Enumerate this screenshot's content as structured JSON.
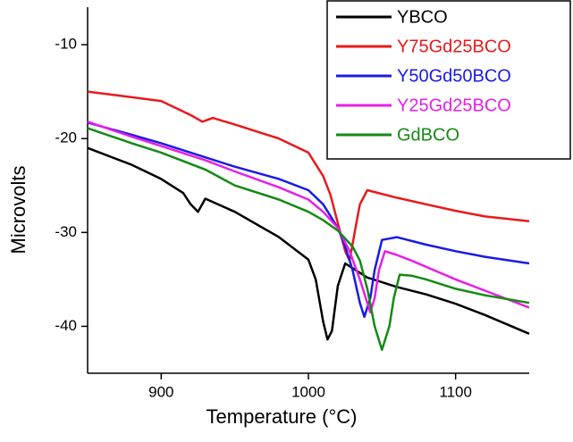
{
  "chart_data": {
    "type": "line",
    "x_label": "Temperature (°C)",
    "y_label": "Microvolts",
    "xlim": [
      850,
      1150
    ],
    "xticks": [
      900,
      1000,
      1100
    ],
    "ylim": [
      -45,
      -6
    ],
    "yticks": [
      -10,
      -20,
      -30,
      -40
    ],
    "legend": "upper right",
    "series": [
      {
        "name": "YBCO",
        "color": "#000000",
        "x": [
          850,
          880,
          900,
          915,
          920,
          925,
          930,
          950,
          980,
          1000,
          1005,
          1010,
          1013,
          1016,
          1020,
          1025,
          1030,
          1040,
          1060,
          1080,
          1100,
          1120,
          1150
        ],
        "values": [
          -21,
          -22.8,
          -24.3,
          -25.8,
          -27,
          -27.8,
          -26.4,
          -27.8,
          -30.5,
          -32.9,
          -35,
          -39.5,
          -41.4,
          -40.5,
          -35.7,
          -33.3,
          -33.8,
          -34.8,
          -35.8,
          -36.6,
          -37.6,
          -38.8,
          -40.8
        ]
      },
      {
        "name": "Y75Gd25BCO",
        "color": "#e8191c",
        "x": [
          850,
          880,
          900,
          920,
          928,
          935,
          950,
          980,
          1000,
          1010,
          1015,
          1020,
          1025,
          1028,
          1032,
          1035,
          1040,
          1060,
          1080,
          1100,
          1120,
          1150
        ],
        "values": [
          -15,
          -15.6,
          -16,
          -17.5,
          -18.2,
          -17.8,
          -18.5,
          -20,
          -21.5,
          -24,
          -26,
          -29,
          -32,
          -33,
          -29.5,
          -27,
          -25.5,
          -26.3,
          -27,
          -27.7,
          -28.3,
          -28.8
        ]
      },
      {
        "name": "Y50Gd50BCO",
        "color": "#1a1ae6",
        "x": [
          850,
          880,
          900,
          930,
          950,
          980,
          1000,
          1010,
          1020,
          1025,
          1030,
          1035,
          1038,
          1042,
          1045,
          1050,
          1060,
          1080,
          1100,
          1120,
          1150
        ],
        "values": [
          -18.3,
          -19.6,
          -20.5,
          -22,
          -23,
          -24.3,
          -25.5,
          -27,
          -29.5,
          -31.5,
          -34,
          -37.5,
          -39,
          -37,
          -34,
          -30.8,
          -30.5,
          -31.3,
          -32,
          -32.6,
          -33.3
        ]
      },
      {
        "name": "Y25Gd25BCO",
        "color": "#e81ee8",
        "x": [
          850,
          880,
          900,
          930,
          950,
          980,
          1000,
          1010,
          1020,
          1028,
          1035,
          1042,
          1045,
          1048,
          1052,
          1060,
          1070,
          1085,
          1100,
          1120,
          1150
        ],
        "values": [
          -18.2,
          -19.8,
          -20.8,
          -22.3,
          -23.5,
          -25.2,
          -26.5,
          -27.8,
          -29.5,
          -32,
          -35,
          -38.5,
          -37,
          -34,
          -32,
          -32.4,
          -33,
          -34,
          -35,
          -36.2,
          -38
        ]
      },
      {
        "name": "GdBCO",
        "color": "#138a13",
        "x": [
          850,
          880,
          900,
          930,
          950,
          980,
          1000,
          1010,
          1020,
          1030,
          1035,
          1040,
          1045,
          1050,
          1055,
          1058,
          1062,
          1070,
          1080,
          1100,
          1120,
          1150
        ],
        "values": [
          -18.9,
          -20.5,
          -21.5,
          -23.3,
          -25,
          -26.5,
          -27.8,
          -28.7,
          -29.8,
          -31.5,
          -33,
          -36,
          -40,
          -42.5,
          -40,
          -37,
          -34.5,
          -34.6,
          -35,
          -36,
          -36.7,
          -37.5
        ]
      }
    ]
  }
}
